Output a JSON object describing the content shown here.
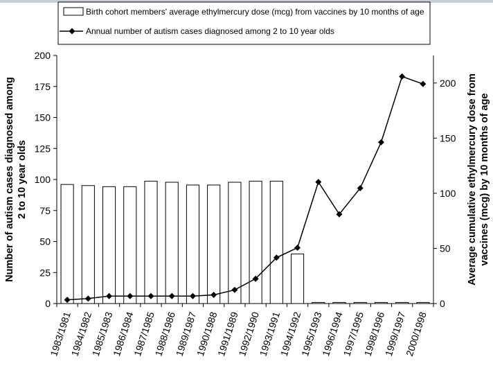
{
  "chart_data": {
    "type": "bar+line",
    "categories": [
      "1983/1981",
      "1984/1982",
      "1985/1983",
      "1986/1984",
      "1987/1985",
      "1988/1986",
      "1989/1987",
      "1990/1988",
      "1991/1989",
      "1992/1990",
      "1993/1991",
      "1994/1992",
      "1995/1993",
      "1996/1994",
      "1997/1995",
      "1998/1996",
      "1999/1997",
      "2000/1998"
    ],
    "series": [
      {
        "name": "Birth cohort members' average ethylmercury dose (mcg) from vaccines by 10 months of age",
        "type": "bar",
        "axis": "right",
        "values": [
          108,
          107,
          106,
          106,
          111,
          110,
          107.5,
          107.5,
          110,
          111,
          111,
          45,
          1,
          1,
          1,
          1,
          1,
          1
        ]
      },
      {
        "name": "Annual number of autism cases diagnosed among 2 to 10 year olds",
        "type": "line",
        "axis": "left",
        "marker": "diamond",
        "values": [
          3,
          4,
          6,
          6,
          6,
          6,
          6,
          7,
          11,
          20,
          37,
          45,
          98,
          72,
          93,
          130,
          183,
          177
        ]
      }
    ],
    "left_axis": {
      "label": "Number of autism cases diagnosed among 2 to 10 year olds",
      "label_lines": [
        "Number of autism cases diagnosed among",
        "2 to 10 year olds"
      ],
      "range": [
        0,
        200
      ],
      "ticks": [
        "0",
        "25",
        "50",
        "75",
        "100",
        "125",
        "150",
        "175",
        "200"
      ]
    },
    "right_axis": {
      "label": "Average cumulative ethylmercury dose from vaccines (mcg) by 10 months of age",
      "label_lines": [
        "Average cumulative ethylmercury dose from",
        "vaccines (mcg) by 10 months of age"
      ],
      "range": [
        0,
        225
      ],
      "ticks": [
        "0",
        "50",
        "100",
        "150",
        "200"
      ]
    },
    "legend": {
      "position": "top",
      "bar_label": "Birth cohort members' average ethylmercury dose (mcg) from vaccines by 10 months of age",
      "line_label": "Annual number of autism cases diagnosed among 2 to 10 year olds"
    }
  },
  "colors": {
    "ink": "#000000",
    "bar_fill": "#ffffff",
    "background": "#ffffff"
  }
}
